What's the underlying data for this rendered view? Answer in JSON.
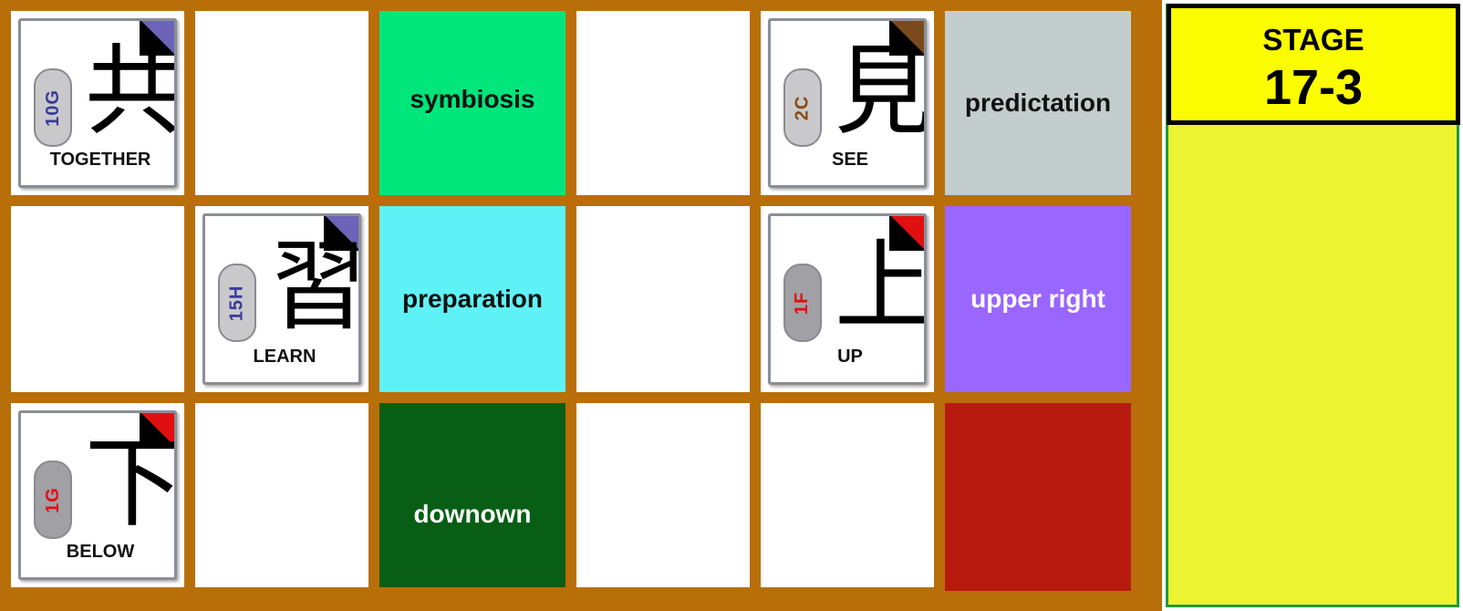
{
  "stage": {
    "label": "STAGE",
    "number": "17-3"
  },
  "cards": {
    "together": {
      "kanji": "共",
      "code": "10G",
      "meaning": "TOGETHER",
      "code_color": "#3b3b9a",
      "corner_color": "#6d63b8"
    },
    "see": {
      "kanji": "見",
      "code": "2C",
      "meaning": "SEE",
      "code_color": "#8a4a12",
      "corner_color": "#7a4a1c"
    },
    "learn": {
      "kanji": "習",
      "code": "15H",
      "meaning": "LEARN",
      "code_color": "#3b3b9a",
      "corner_color": "#6d63b8"
    },
    "up": {
      "kanji": "上",
      "code": "1F",
      "meaning": "UP",
      "code_color": "#e01010",
      "corner_color": "#e01010"
    },
    "below": {
      "kanji": "下",
      "code": "1G",
      "meaning": "BELOW",
      "code_color": "#e01010",
      "corner_color": "#e01010"
    }
  },
  "words": {
    "symbiosis": {
      "text": "symbiosis",
      "color": "#00e67a"
    },
    "predictation": {
      "text": "predictation",
      "color": "#c3cdcd"
    },
    "preparation": {
      "text": "preparation",
      "color": "#5ef2f7"
    },
    "upper_right": {
      "text": "upper right",
      "color": "#9966ff"
    },
    "downown": {
      "text": "downown",
      "color": "#075e14"
    },
    "red_tile": {
      "text": "",
      "color": "#b81a10"
    }
  },
  "colors": {
    "board_frame": "#b86f0a",
    "panel": "#ecf330",
    "stage_box": "#fbfb02"
  }
}
